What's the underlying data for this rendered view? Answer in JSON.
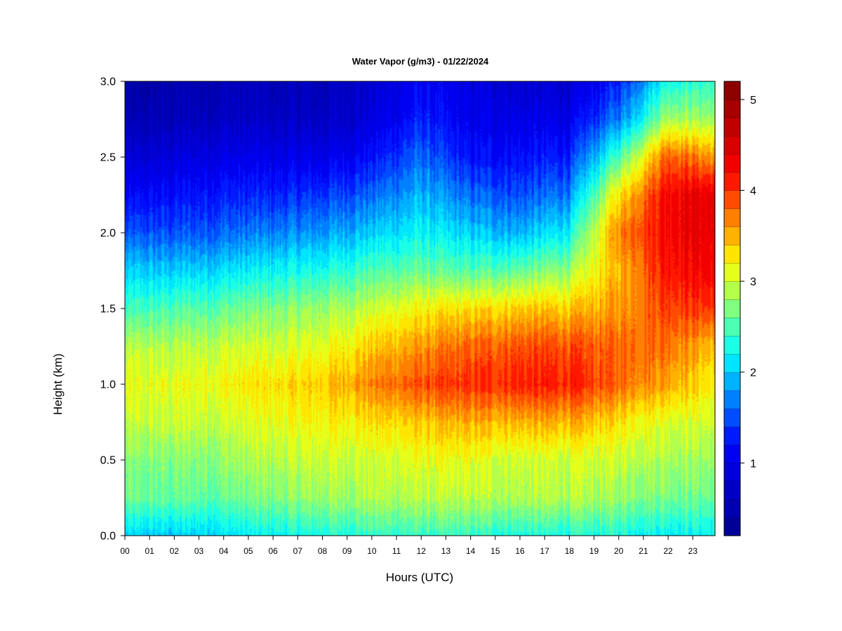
{
  "chart_data": {
    "type": "heatmap",
    "title": "Water Vapor (g/m3) - 01/22/2024",
    "xlabel": "Hours (UTC)",
    "ylabel": "Height (km)",
    "xlim": [
      0,
      23.9
    ],
    "ylim": [
      0.0,
      3.0
    ],
    "x_ticks": [
      0,
      1,
      2,
      3,
      4,
      5,
      6,
      7,
      8,
      9,
      10,
      11,
      12,
      13,
      14,
      15,
      16,
      17,
      18,
      19,
      20,
      21,
      22,
      23
    ],
    "x_tick_labels": [
      "00",
      "01",
      "02",
      "03",
      "04",
      "05",
      "06",
      "07",
      "08",
      "09",
      "10",
      "11",
      "12",
      "13",
      "14",
      "15",
      "16",
      "17",
      "18",
      "19",
      "20",
      "21",
      "22",
      "23"
    ],
    "y_ticks": [
      0.0,
      0.5,
      1.0,
      1.5,
      2.0,
      2.5,
      3.0
    ],
    "y_tick_labels": [
      "0.0",
      "0.5",
      "1.0",
      "1.5",
      "2.0",
      "2.5",
      "3.0"
    ],
    "heights_km": [
      0.0,
      0.25,
      0.5,
      0.75,
      1.0,
      1.25,
      1.5,
      1.75,
      2.0,
      2.25,
      2.5,
      2.75,
      3.0
    ],
    "hours": [
      0,
      2,
      4,
      6,
      8,
      10,
      12,
      14,
      16,
      18,
      20,
      22,
      24
    ],
    "values": [
      [
        2.0,
        2.0,
        2.1,
        2.2,
        2.3,
        2.4,
        2.4,
        2.4,
        2.3,
        2.3,
        2.3,
        2.2,
        2.2
      ],
      [
        2.6,
        2.6,
        2.6,
        2.7,
        2.8,
        2.9,
        2.9,
        2.9,
        2.9,
        2.9,
        2.8,
        2.7,
        2.6
      ],
      [
        2.7,
        2.7,
        2.8,
        2.9,
        3.0,
        3.0,
        3.1,
        3.1,
        3.0,
        3.0,
        3.0,
        2.9,
        2.8
      ],
      [
        2.9,
        3.0,
        3.0,
        3.1,
        3.2,
        3.3,
        3.4,
        3.5,
        3.5,
        3.5,
        3.3,
        3.1,
        3.0
      ],
      [
        3.1,
        3.1,
        3.2,
        3.3,
        3.4,
        3.7,
        3.9,
        4.0,
        4.1,
        4.1,
        3.8,
        3.6,
        3.2
      ],
      [
        2.9,
        2.9,
        3.0,
        3.0,
        3.1,
        3.4,
        3.6,
        3.8,
        3.9,
        3.9,
        3.8,
        3.8,
        3.4
      ],
      [
        2.4,
        2.5,
        2.6,
        2.7,
        2.8,
        3.0,
        3.2,
        3.3,
        3.4,
        3.4,
        3.6,
        4.0,
        4.0
      ],
      [
        2.0,
        2.0,
        2.1,
        2.2,
        2.3,
        2.5,
        2.6,
        2.5,
        2.6,
        2.8,
        3.5,
        4.2,
        4.3
      ],
      [
        1.5,
        1.5,
        1.6,
        1.7,
        1.8,
        2.0,
        2.2,
        2.0,
        1.9,
        2.2,
        3.7,
        4.3,
        4.4
      ],
      [
        1.1,
        1.2,
        1.3,
        1.3,
        1.4,
        1.6,
        1.9,
        1.6,
        1.5,
        1.7,
        3.3,
        4.3,
        4.4
      ],
      [
        0.8,
        0.9,
        1.0,
        1.0,
        1.0,
        1.2,
        1.6,
        1.2,
        1.2,
        1.3,
        2.5,
        3.9,
        3.6
      ],
      [
        0.5,
        0.6,
        0.7,
        0.7,
        0.7,
        0.9,
        1.3,
        1.0,
        1.0,
        1.0,
        1.7,
        2.9,
        2.8
      ],
      [
        0.4,
        0.5,
        0.6,
        0.6,
        0.6,
        0.8,
        1.1,
        0.9,
        0.8,
        0.8,
        1.3,
        2.3,
        2.4
      ]
    ],
    "colorbar": {
      "vmin": 0.2,
      "vmax": 5.2,
      "levels": 25,
      "tick_values": [
        1,
        2,
        3,
        4,
        5
      ],
      "tick_labels": [
        "1",
        "2",
        "3",
        "4",
        "5"
      ],
      "colormap": [
        "#00008b",
        "#0000ff",
        "#00ffff",
        "#ffff00",
        "#ff0000",
        "#800000"
      ]
    },
    "grid": false,
    "legend": "colorbar-right"
  }
}
